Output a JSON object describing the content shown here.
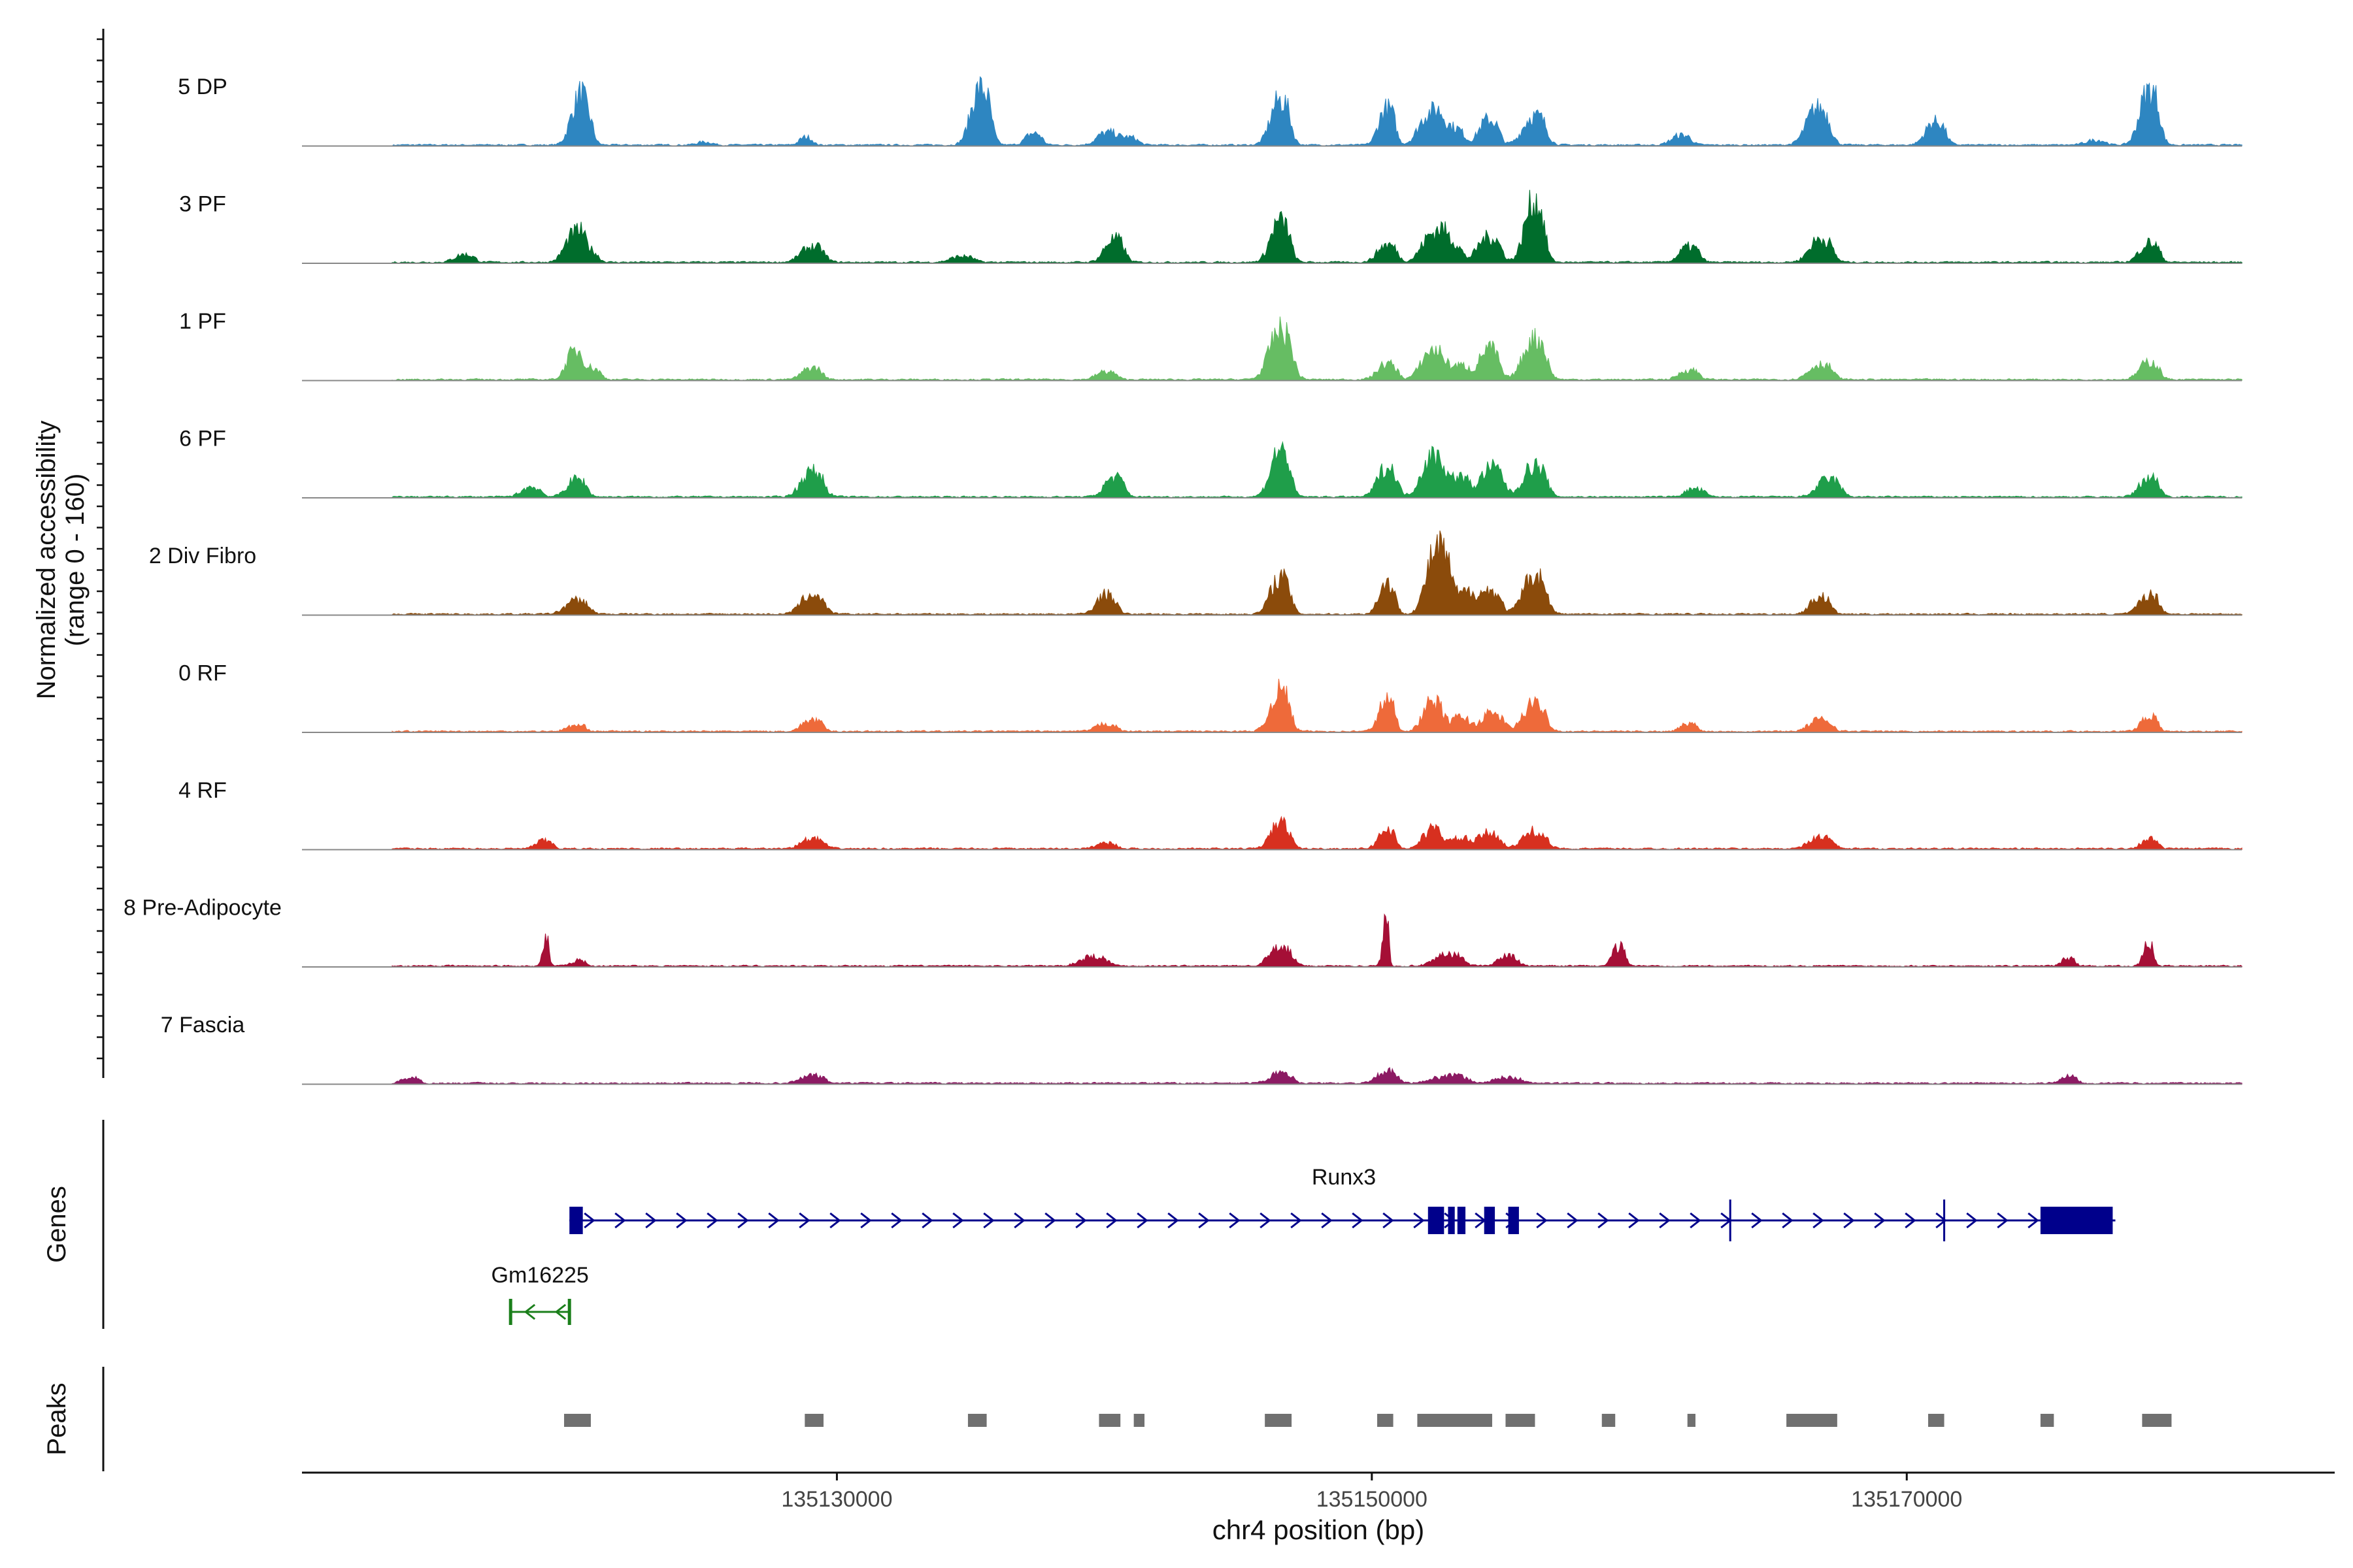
{
  "chart_data": {
    "type": "area",
    "title": "",
    "ylabel_line1": "Normalized accessibility",
    "ylabel_line2": "(range 0 - 160)",
    "ylim": [
      0,
      160
    ],
    "xlabel": "chr4 position (bp)",
    "xlim": [
      135110000,
      135186000
    ],
    "xticks": [
      135130000,
      135150000,
      135170000
    ],
    "xtick_labels": [
      "135130000",
      "135150000",
      "135170000"
    ],
    "tracks": [
      {
        "name": "5 DP",
        "color": "#2E86C1",
        "peaks": [
          [
            135120200,
            28,
            0.25
          ],
          [
            135120500,
            30,
            0.25
          ],
          [
            135128800,
            8,
            0.2
          ],
          [
            135125000,
            3,
            0.25
          ],
          [
            135135300,
            58,
            0.3
          ],
          [
            135137300,
            12,
            0.25
          ],
          [
            135140000,
            12,
            0.3
          ],
          [
            135140800,
            8,
            0.3
          ],
          [
            135146500,
            46,
            0.3
          ],
          [
            135150500,
            38,
            0.25
          ],
          [
            135152100,
            32,
            0.35
          ],
          [
            135152900,
            18,
            0.35
          ],
          [
            135154300,
            26,
            0.3
          ],
          [
            135156000,
            30,
            0.35
          ],
          [
            135161500,
            10,
            0.3
          ],
          [
            135166600,
            38,
            0.35
          ],
          [
            135171000,
            24,
            0.3
          ],
          [
            135177000,
            5,
            0.3
          ],
          [
            135179000,
            56,
            0.3
          ]
        ]
      },
      {
        "name": "3 PF",
        "color": "#006D2C",
        "peaks": [
          [
            135116000,
            8,
            0.3
          ],
          [
            135120100,
            26,
            0.3
          ],
          [
            135120600,
            12,
            0.3
          ],
          [
            135129000,
            16,
            0.35
          ],
          [
            135134600,
            6,
            0.35
          ],
          [
            135140300,
            24,
            0.3
          ],
          [
            135146500,
            42,
            0.3
          ],
          [
            135150500,
            18,
            0.3
          ],
          [
            135152200,
            28,
            0.35
          ],
          [
            135152900,
            20,
            0.3
          ],
          [
            135154300,
            26,
            0.35
          ],
          [
            135156000,
            62,
            0.3
          ],
          [
            135161800,
            16,
            0.3
          ],
          [
            135166700,
            24,
            0.35
          ],
          [
            135179000,
            20,
            0.3
          ]
        ]
      },
      {
        "name": "1 PF",
        "color": "#66BD63",
        "peaks": [
          [
            135120100,
            26,
            0.25
          ],
          [
            135120700,
            12,
            0.3
          ],
          [
            135129000,
            12,
            0.3
          ],
          [
            135140000,
            8,
            0.3
          ],
          [
            135146500,
            50,
            0.35
          ],
          [
            135150500,
            16,
            0.3
          ],
          [
            135152200,
            30,
            0.35
          ],
          [
            135153200,
            14,
            0.3
          ],
          [
            135154300,
            32,
            0.3
          ],
          [
            135156000,
            42,
            0.35
          ],
          [
            135161800,
            10,
            0.3
          ],
          [
            135166700,
            16,
            0.35
          ],
          [
            135179000,
            18,
            0.3
          ]
        ]
      },
      {
        "name": "6 PF",
        "color": "#1F9E4A",
        "peaks": [
          [
            135118500,
            10,
            0.3
          ],
          [
            135120200,
            18,
            0.3
          ],
          [
            135129000,
            26,
            0.35
          ],
          [
            135140300,
            20,
            0.3
          ],
          [
            135146500,
            48,
            0.3
          ],
          [
            135150500,
            30,
            0.3
          ],
          [
            135152200,
            42,
            0.35
          ],
          [
            135153200,
            20,
            0.3
          ],
          [
            135154400,
            30,
            0.35
          ],
          [
            135156000,
            32,
            0.35
          ],
          [
            135162000,
            8,
            0.3
          ],
          [
            135167000,
            18,
            0.35
          ],
          [
            135179000,
            20,
            0.3
          ]
        ]
      },
      {
        "name": "2 Div Fibro",
        "color": "#8B4B0B",
        "peaks": [
          [
            135120200,
            14,
            0.35
          ],
          [
            135129000,
            20,
            0.35
          ],
          [
            135140000,
            20,
            0.3
          ],
          [
            135146500,
            38,
            0.3
          ],
          [
            135150500,
            32,
            0.25
          ],
          [
            135152400,
            68,
            0.35
          ],
          [
            135153400,
            20,
            0.3
          ],
          [
            135154300,
            24,
            0.35
          ],
          [
            135156000,
            40,
            0.35
          ],
          [
            135166700,
            18,
            0.3
          ],
          [
            135179000,
            20,
            0.3
          ]
        ]
      },
      {
        "name": "0 RF",
        "color": "#EE6A3A",
        "peaks": [
          [
            135120200,
            6,
            0.3
          ],
          [
            135129000,
            12,
            0.3
          ],
          [
            135140000,
            8,
            0.3
          ],
          [
            135146500,
            42,
            0.3
          ],
          [
            135150500,
            32,
            0.25
          ],
          [
            135152200,
            30,
            0.3
          ],
          [
            135153200,
            14,
            0.3
          ],
          [
            135154400,
            18,
            0.35
          ],
          [
            135156000,
            28,
            0.35
          ],
          [
            135161800,
            8,
            0.25
          ],
          [
            135166700,
            12,
            0.35
          ],
          [
            135179000,
            16,
            0.25
          ]
        ]
      },
      {
        "name": "4 RF",
        "color": "#D7301F",
        "peaks": [
          [
            135119000,
            8,
            0.25
          ],
          [
            135129000,
            10,
            0.35
          ],
          [
            135140000,
            6,
            0.3
          ],
          [
            135146500,
            26,
            0.3
          ],
          [
            135150500,
            20,
            0.25
          ],
          [
            135152200,
            20,
            0.3
          ],
          [
            135153200,
            10,
            0.3
          ],
          [
            135154300,
            16,
            0.35
          ],
          [
            135156000,
            18,
            0.35
          ],
          [
            135166700,
            12,
            0.35
          ],
          [
            135179000,
            10,
            0.25
          ]
        ]
      },
      {
        "name": "8 Pre-Adipocyte",
        "color": "#A50F36",
        "peaks": [
          [
            135119100,
            28,
            0.1
          ],
          [
            135120300,
            6,
            0.2
          ],
          [
            135139500,
            10,
            0.4
          ],
          [
            135146500,
            18,
            0.35
          ],
          [
            135150500,
            48,
            0.1
          ],
          [
            135152800,
            12,
            0.4
          ],
          [
            135155000,
            10,
            0.3
          ],
          [
            135159200,
            20,
            0.2
          ],
          [
            135176000,
            8,
            0.2
          ],
          [
            135179000,
            24,
            0.15
          ]
        ]
      },
      {
        "name": "7 Fascia",
        "color": "#8C1A63",
        "peaks": [
          [
            135114000,
            6,
            0.25
          ],
          [
            135129000,
            8,
            0.35
          ],
          [
            135146500,
            10,
            0.35
          ],
          [
            135150500,
            12,
            0.3
          ],
          [
            135152800,
            8,
            0.5
          ],
          [
            135155000,
            6,
            0.4
          ],
          [
            135176000,
            8,
            0.25
          ]
        ]
      }
    ],
    "genes": {
      "label": "Genes",
      "items": [
        {
          "name": "Runx3",
          "color": "#00008B",
          "strand": "+",
          "start": 135120000,
          "end": 135177800,
          "exons": [
            [
              135120000,
              135120500
            ],
            [
              135152100,
              135152700
            ],
            [
              135152850,
              135153100
            ],
            [
              135153200,
              135153500
            ],
            [
              135154200,
              135154600
            ],
            [
              135155100,
              135155500
            ],
            [
              135175000,
              135177700
            ]
          ],
          "marks": [
            135163400,
            135171400
          ]
        },
        {
          "name": "Gm16225",
          "color": "#1B7F1B",
          "strand": "-",
          "start": 135117800,
          "end": 135120000,
          "exons": []
        }
      ]
    },
    "peaks_track": {
      "label": "Peaks",
      "color": "#707070",
      "regions": [
        [
          135119800,
          135120800
        ],
        [
          135128800,
          135129500
        ],
        [
          135134900,
          135135600
        ],
        [
          135139800,
          135140600
        ],
        [
          135141100,
          135141500
        ],
        [
          135146000,
          135147000
        ],
        [
          135150200,
          135150800
        ],
        [
          135151700,
          135154500
        ],
        [
          135155000,
          135156100
        ],
        [
          135158600,
          135159100
        ],
        [
          135161800,
          135162100
        ],
        [
          135165500,
          135167400
        ],
        [
          135170800,
          135171400
        ],
        [
          135175000,
          135175500
        ],
        [
          135178800,
          135179900
        ]
      ]
    }
  }
}
